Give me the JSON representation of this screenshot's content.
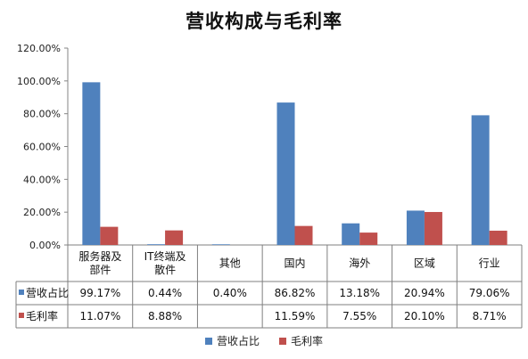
{
  "chart_data": {
    "type": "bar",
    "title": "营收构成与毛利率",
    "categories": [
      "服务器及部件",
      "IT终端及散件",
      "其他",
      "国内",
      "海外",
      "区域",
      "行业"
    ],
    "category_display": [
      [
        "服务器及",
        "部件"
      ],
      [
        "IT终端及",
        "散件"
      ],
      [
        "其他"
      ],
      [
        "国内"
      ],
      [
        "海外"
      ],
      [
        "区域"
      ],
      [
        "行业"
      ]
    ],
    "series": [
      {
        "name": "营收占比",
        "color": "#4F81BD",
        "values": [
          99.17,
          0.44,
          0.4,
          86.82,
          13.18,
          20.94,
          79.06
        ],
        "labels": [
          "99.17%",
          "0.44%",
          "0.40%",
          "86.82%",
          "13.18%",
          "20.94%",
          "79.06%"
        ]
      },
      {
        "name": "毛利率",
        "color": "#C0504D",
        "values": [
          11.07,
          8.88,
          null,
          11.59,
          7.55,
          20.1,
          8.71
        ],
        "labels": [
          "11.07%",
          "8.88%",
          "",
          "11.59%",
          "7.55%",
          "20.10%",
          "8.71%"
        ]
      }
    ],
    "yticks": [
      "0.00%",
      "20.00%",
      "40.00%",
      "60.00%",
      "80.00%",
      "100.00%",
      "120.00%"
    ],
    "ylim": [
      0,
      120
    ],
    "xlabel": "",
    "ylabel": "",
    "grid": false,
    "legend": "bottom",
    "data_table": true
  }
}
